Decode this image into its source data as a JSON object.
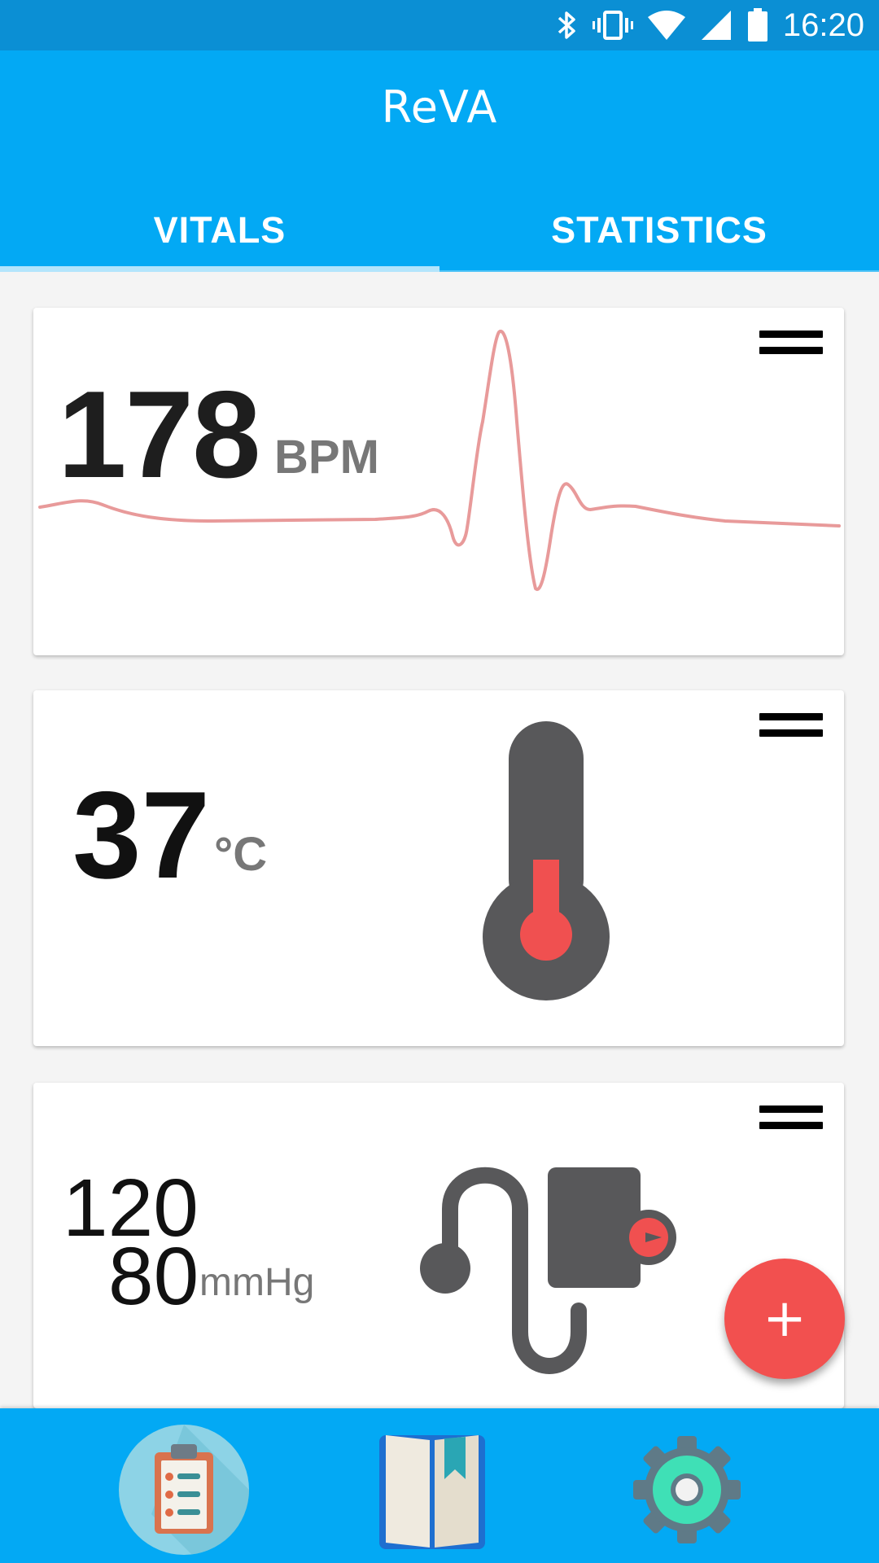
{
  "status_bar": {
    "time": "16:20",
    "icons": [
      "bluetooth-icon",
      "vibrate-icon",
      "wifi-icon",
      "cell-signal-icon",
      "battery-icon"
    ]
  },
  "app": {
    "title": "ReVA"
  },
  "tabs": [
    {
      "label": "VITALS",
      "selected": true
    },
    {
      "label": "STATISTICS",
      "selected": false
    }
  ],
  "vitals": {
    "heart_rate": {
      "value": "178",
      "unit": "BPM",
      "icon": "ecg-waveform-icon"
    },
    "temperature": {
      "value": "37",
      "unit": "°C",
      "icon": "thermometer-icon"
    },
    "blood_pressure": {
      "systolic": "120",
      "diastolic": "80",
      "unit": "mmHg",
      "icon": "blood-pressure-monitor-icon"
    }
  },
  "fab": {
    "label": "+"
  },
  "bottom_nav": [
    {
      "name": "records",
      "icon": "clipboard-list-icon",
      "selected": true
    },
    {
      "name": "journal",
      "icon": "book-bookmark-icon",
      "selected": false
    },
    {
      "name": "settings",
      "icon": "gear-icon",
      "selected": false
    }
  ],
  "colors": {
    "primary": "#03a9f4",
    "status_bar": "#0b8fd4",
    "accent": "#f2504f",
    "ecg_line": "#e89a9a",
    "icon_gray": "#58585a",
    "icon_red": "#f05050"
  }
}
